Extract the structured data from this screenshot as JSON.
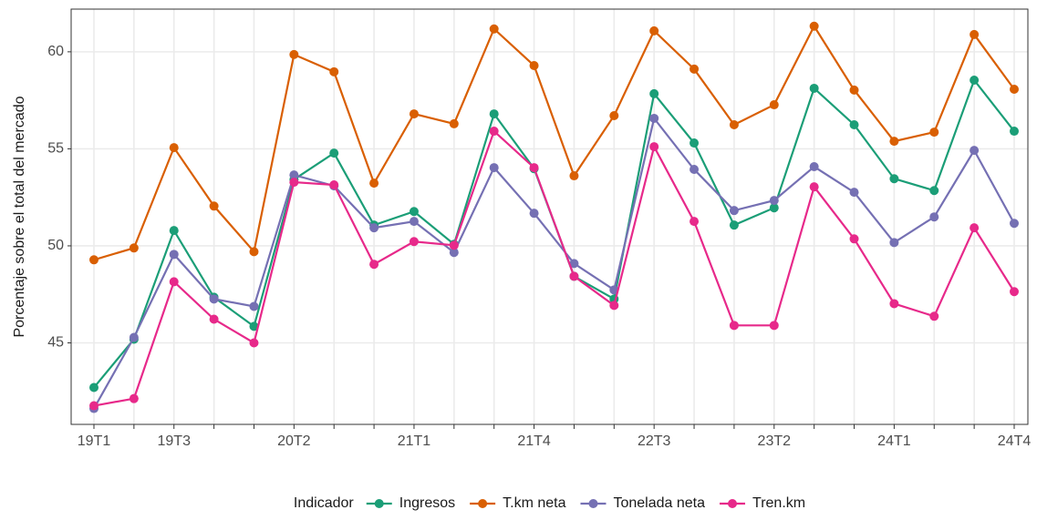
{
  "chart_data": {
    "type": "line",
    "y_label": "Porcentaje sobre el total del mercado",
    "legend_title": "Indicador",
    "legend_position": "bottom",
    "grid": true,
    "categories": [
      "19T1",
      null,
      "19T3",
      null,
      null,
      "20T2",
      null,
      null,
      "21T1",
      null,
      null,
      "21T4",
      null,
      null,
      "22T3",
      null,
      null,
      "23T2",
      null,
      null,
      "24T1",
      null,
      null,
      "24T4"
    ],
    "ylim": [
      40.8,
      62.2
    ],
    "yticks": [
      45,
      50,
      55,
      60
    ],
    "series": [
      {
        "name": "Ingresos",
        "color": "#1b9e77",
        "values": [
          42.7,
          45.19,
          50.79,
          47.35,
          45.85,
          53.42,
          54.78,
          51.07,
          51.77,
          50.08,
          56.8,
          53.98,
          48.43,
          47.26,
          57.84,
          55.3,
          51.07,
          51.96,
          58.12,
          56.24,
          53.46,
          52.85,
          58.54,
          55.91
        ]
      },
      {
        "name": "T.km neta",
        "color": "#d95f02",
        "values": [
          49.28,
          49.89,
          55.06,
          52.05,
          49.7,
          59.86,
          58.97,
          53.23,
          56.8,
          56.29,
          61.18,
          59.29,
          53.61,
          56.71,
          61.08,
          59.11,
          56.24,
          57.27,
          61.32,
          58.03,
          55.39,
          55.86,
          60.89,
          58.07
        ]
      },
      {
        "name": "Tonelada neta",
        "color": "#7570b3",
        "values": [
          41.62,
          45.28,
          49.56,
          47.26,
          46.88,
          53.65,
          53.09,
          50.93,
          51.26,
          49.66,
          54.03,
          51.68,
          49.09,
          47.73,
          56.57,
          53.94,
          51.82,
          52.34,
          54.08,
          52.76,
          50.17,
          51.49,
          54.92,
          51.16
        ]
      },
      {
        "name": "Tren.km",
        "color": "#e7298a",
        "values": [
          41.76,
          42.13,
          48.15,
          46.22,
          45.0,
          53.28,
          53.14,
          49.05,
          50.22,
          50.03,
          55.91,
          54.03,
          48.43,
          46.93,
          55.11,
          51.26,
          45.9,
          45.9,
          53.04,
          50.36,
          47.02,
          46.37,
          50.93,
          47.64
        ]
      }
    ]
  }
}
